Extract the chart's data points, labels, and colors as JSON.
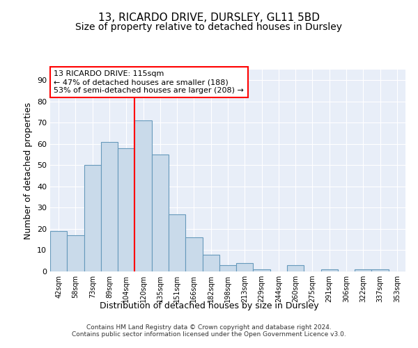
{
  "title1": "13, RICARDO DRIVE, DURSLEY, GL11 5BD",
  "title2": "Size of property relative to detached houses in Dursley",
  "xlabel": "Distribution of detached houses by size in Dursley",
  "ylabel": "Number of detached properties",
  "bar_labels": [
    "42sqm",
    "58sqm",
    "73sqm",
    "89sqm",
    "104sqm",
    "120sqm",
    "135sqm",
    "151sqm",
    "166sqm",
    "182sqm",
    "198sqm",
    "213sqm",
    "229sqm",
    "244sqm",
    "260sqm",
    "275sqm",
    "291sqm",
    "306sqm",
    "322sqm",
    "337sqm",
    "353sqm"
  ],
  "bar_values": [
    19,
    17,
    50,
    61,
    58,
    71,
    55,
    27,
    16,
    8,
    3,
    4,
    1,
    0,
    3,
    0,
    1,
    0,
    1,
    1,
    0
  ],
  "bar_color": "#c9daea",
  "bar_edge_color": "#6699bb",
  "background_color": "#e8eef8",
  "red_line_x": 4.5,
  "annotation_line1": "13 RICARDO DRIVE: 115sqm",
  "annotation_line2": "← 47% of detached houses are smaller (188)",
  "annotation_line3": "53% of semi-detached houses are larger (208) →",
  "ylim": [
    0,
    95
  ],
  "yticks": [
    0,
    10,
    20,
    30,
    40,
    50,
    60,
    70,
    80,
    90
  ],
  "footer": "Contains HM Land Registry data © Crown copyright and database right 2024.\nContains public sector information licensed under the Open Government Licence v3.0.",
  "title_fontsize": 11,
  "subtitle_fontsize": 10,
  "axis_label_fontsize": 9,
  "tick_fontsize": 8,
  "ann_fontsize": 8
}
